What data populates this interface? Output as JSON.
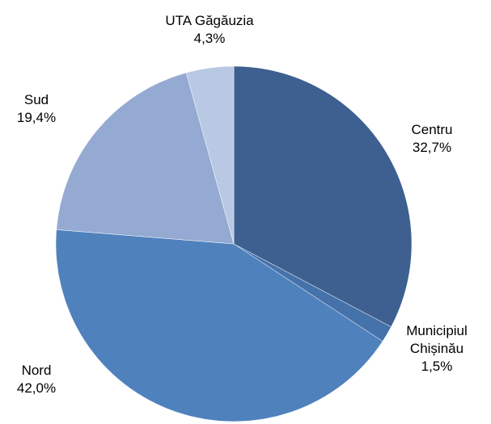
{
  "chart_data": {
    "type": "pie",
    "categories": [
      "Centru",
      "Municipiul Chișinău",
      "Nord",
      "Sud",
      "UTA Găgăuzia"
    ],
    "values": [
      32.7,
      1.5,
      42.0,
      19.4,
      4.3
    ],
    "value_labels": [
      "32,7%",
      "1,5%",
      "42,0%",
      "19,4%",
      "4,3%"
    ],
    "colors": [
      "#3d6090",
      "#4672ab",
      "#4f81bd",
      "#95aad2",
      "#b9c8e3"
    ]
  }
}
